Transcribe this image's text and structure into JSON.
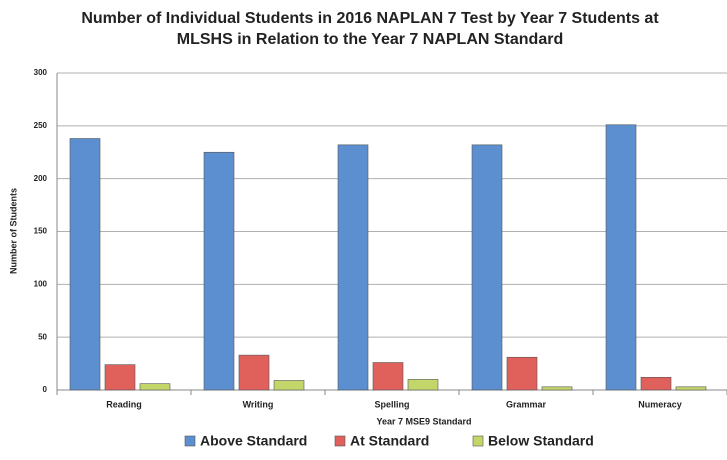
{
  "chart_data": {
    "type": "bar",
    "title": "Number of Individual Students in 2016 NAPLAN 7 Test by Year 7 Students at MLSHS in Relation to the Year 7 NAPLAN Standard",
    "x_label": "Year 7 MSE9 Standard",
    "y_label": "Number of Students",
    "categories": [
      "Reading",
      "Writing",
      "Spelling",
      "Grammar",
      "Numeracy"
    ],
    "series": [
      {
        "name": "Above Standard",
        "color": "#5b8fd0",
        "values": [
          238,
          225,
          232,
          232,
          251
        ]
      },
      {
        "name": "At Standard",
        "color": "#e0605c",
        "values": [
          24,
          33,
          26,
          31,
          12
        ]
      },
      {
        "name": "Below Standard",
        "color": "#c3d66a",
        "values": [
          6,
          9,
          10,
          3,
          3
        ]
      }
    ],
    "ylim": [
      0,
      300
    ],
    "yticks": [
      0,
      50,
      100,
      150,
      200,
      250,
      300
    ],
    "grid": true,
    "legend": "bottom"
  }
}
